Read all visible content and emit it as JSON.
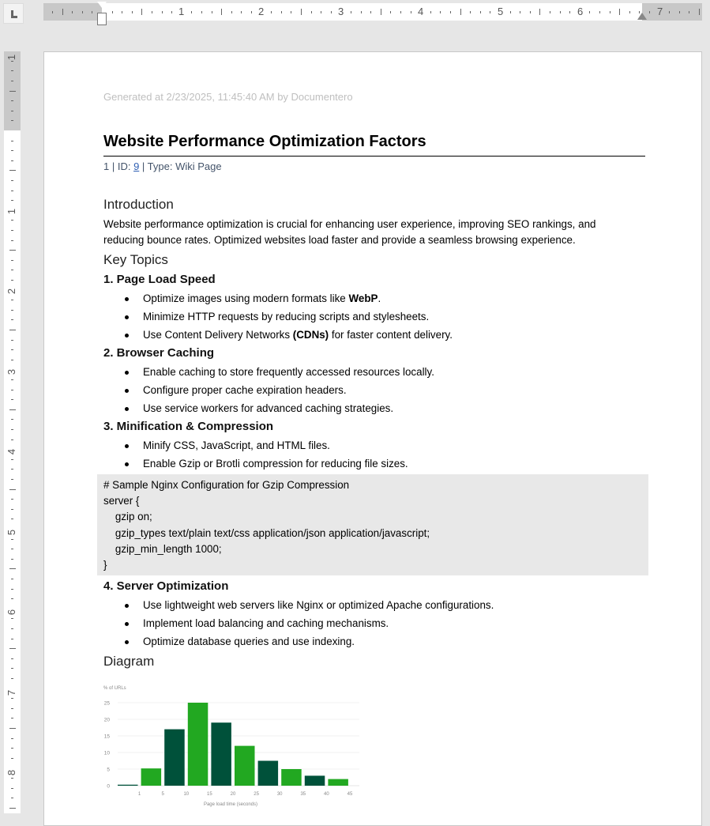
{
  "ruler": {
    "horizontal_numbers": [
      "1",
      "2",
      "3",
      "4",
      "5",
      "6",
      "7"
    ],
    "vertical_numbers": [
      "1",
      "1",
      "2",
      "3",
      "4",
      "5",
      "6",
      "7",
      "8"
    ]
  },
  "document": {
    "generated": "Generated at 2/23/2025, 11:45:40 AM by Documentero",
    "title": "Website Performance Optimization Factors",
    "meta": {
      "prefix": "1 | ID: ",
      "id": "9",
      "suffix": " | Type: Wiki Page"
    },
    "intro_heading": "Introduction",
    "intro_lines": [
      "Website performance optimization is crucial for enhancing user experience, improving SEO rankings, and",
      "reducing bounce rates. Optimized websites load faster and provide a seamless browsing experience."
    ],
    "key_topics_heading": "Key Topics",
    "sections": [
      {
        "heading": "1. Page Load Speed",
        "items": [
          [
            "Optimize images using modern formats like ",
            "WebP",
            "."
          ],
          [
            "Minimize HTTP requests by reducing scripts and stylesheets.",
            "",
            ""
          ],
          [
            "Use Content Delivery Networks ",
            "(CDNs)",
            " for faster content delivery."
          ]
        ]
      },
      {
        "heading": "2. Browser Caching",
        "items": [
          [
            "Enable caching to store frequently accessed resources locally.",
            "",
            ""
          ],
          [
            "Configure proper cache expiration headers.",
            "",
            ""
          ],
          [
            "Use service workers for advanced caching strategies.",
            "",
            ""
          ]
        ]
      },
      {
        "heading": "3. Minification & Compression",
        "items": [
          [
            "Minify CSS, JavaScript, and HTML files.",
            "",
            ""
          ],
          [
            "Enable Gzip or Brotli compression for reducing file sizes.",
            "",
            ""
          ]
        ]
      },
      {
        "heading": "4. Server Optimization",
        "items": [
          [
            "Use lightweight web servers like Nginx or optimized Apache configurations.",
            "",
            ""
          ],
          [
            "Implement load balancing and caching mechanisms.",
            "",
            ""
          ],
          [
            "Optimize database queries and use indexing.",
            "",
            ""
          ]
        ]
      }
    ],
    "code_lines": [
      "# Sample Nginx Configuration for Gzip Compression",
      "server {",
      "    gzip on;",
      "    gzip_types text/plain text/css application/json application/javascript;",
      "    gzip_min_length 1000;",
      "}"
    ],
    "diagram_heading": "Diagram"
  },
  "chart_data": {
    "type": "bar",
    "title": "",
    "ylabel": "% of URLs",
    "xlabel": "Page load time (seconds)",
    "x_tick_labels": [
      "1",
      "5",
      "10",
      "15",
      "20",
      "25",
      "30",
      "35",
      "40",
      "45"
    ],
    "y_ticks": [
      0,
      5,
      10,
      15,
      20,
      25
    ],
    "ylim": [
      0,
      27
    ],
    "values": [
      0.3,
      5.2,
      17,
      25,
      19,
      12,
      7.5,
      5,
      3,
      2
    ],
    "bar_colors": [
      "#00513a",
      "#22a821",
      "#00513a",
      "#22a821",
      "#00513a",
      "#22a821",
      "#00513a",
      "#22a821",
      "#00513a",
      "#22a821"
    ],
    "grid": true
  }
}
